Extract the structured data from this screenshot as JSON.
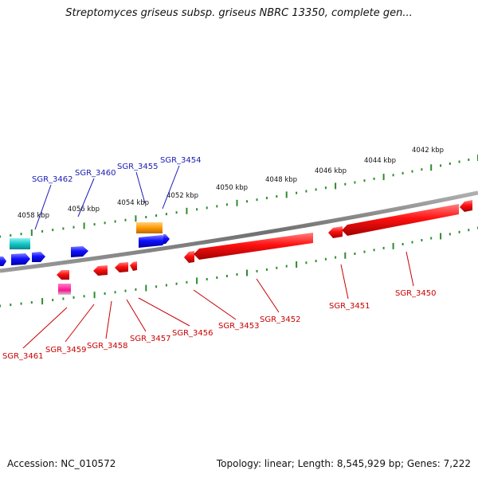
{
  "title": "Streptomyces griseus subsp. griseus NBRC 13350, complete gen...",
  "footer": {
    "accession": "Accession: NC_010572",
    "summary": "Topology: linear; Length: 8,545,929 bp; Genes: 7,222"
  },
  "colors": {
    "backbone": "#808080",
    "tick": "#2e8b2e",
    "forward_label": "#1a1ab4",
    "reverse_label": "#c80000"
  },
  "kbp_labels": [
    "4042 kbp",
    "4044 kbp",
    "4046 kbp",
    "4048 kbp",
    "4050 kbp",
    "4052 kbp",
    "4054 kbp",
    "4056 kbp",
    "4058 kbp"
  ],
  "upper_gene_labels": [
    "SGR_3462",
    "SGR_3460",
    "SGR_3455",
    "SGR_3454"
  ],
  "lower_gene_labels": [
    "SGR_3461",
    "SGR_3459",
    "SGR_3458",
    "SGR_3457",
    "SGR_3456",
    "SGR_3453",
    "SGR_3452",
    "SGR_3451",
    "SGR_3450"
  ]
}
